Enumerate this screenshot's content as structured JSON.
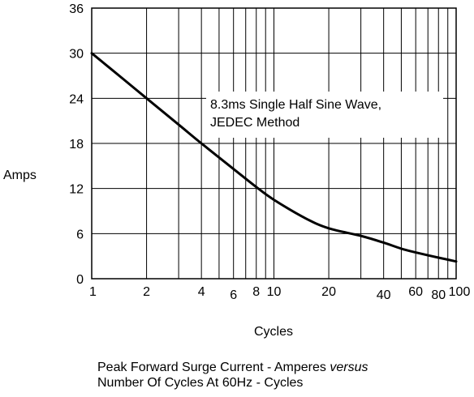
{
  "chart_data": {
    "type": "line",
    "x_scale": "log",
    "xlim": [
      1,
      100
    ],
    "ylim": [
      0,
      36
    ],
    "grid": true,
    "ylabel": "Amps",
    "xlabel": "Cycles",
    "y_ticks": [
      "0",
      "6",
      "12",
      "18",
      "24",
      "30",
      "36"
    ],
    "x_ticks": [
      "1",
      "2",
      "4",
      "6",
      "8",
      "10",
      "20",
      "40",
      "60",
      "80",
      "100"
    ],
    "annotation_lines": [
      "8.3ms Single Half Sine Wave,",
      "JEDEC Method"
    ],
    "series": [
      {
        "x": [
          1,
          1.5,
          2,
          3,
          4,
          6,
          8,
          10,
          15,
          20,
          30,
          40,
          50,
          60,
          80,
          100
        ],
        "y": [
          30,
          26.5,
          24,
          20.5,
          18,
          14.6,
          12.2,
          10.5,
          8,
          6.7,
          5.7,
          4.8,
          4.0,
          3.5,
          2.8,
          2.3
        ]
      }
    ]
  },
  "caption": {
    "line1_prefix": "Peak Forward Surge Current - Amperes ",
    "line1_italic": "versus",
    "line2": "Number Of Cycles At 60Hz - Cycles"
  }
}
